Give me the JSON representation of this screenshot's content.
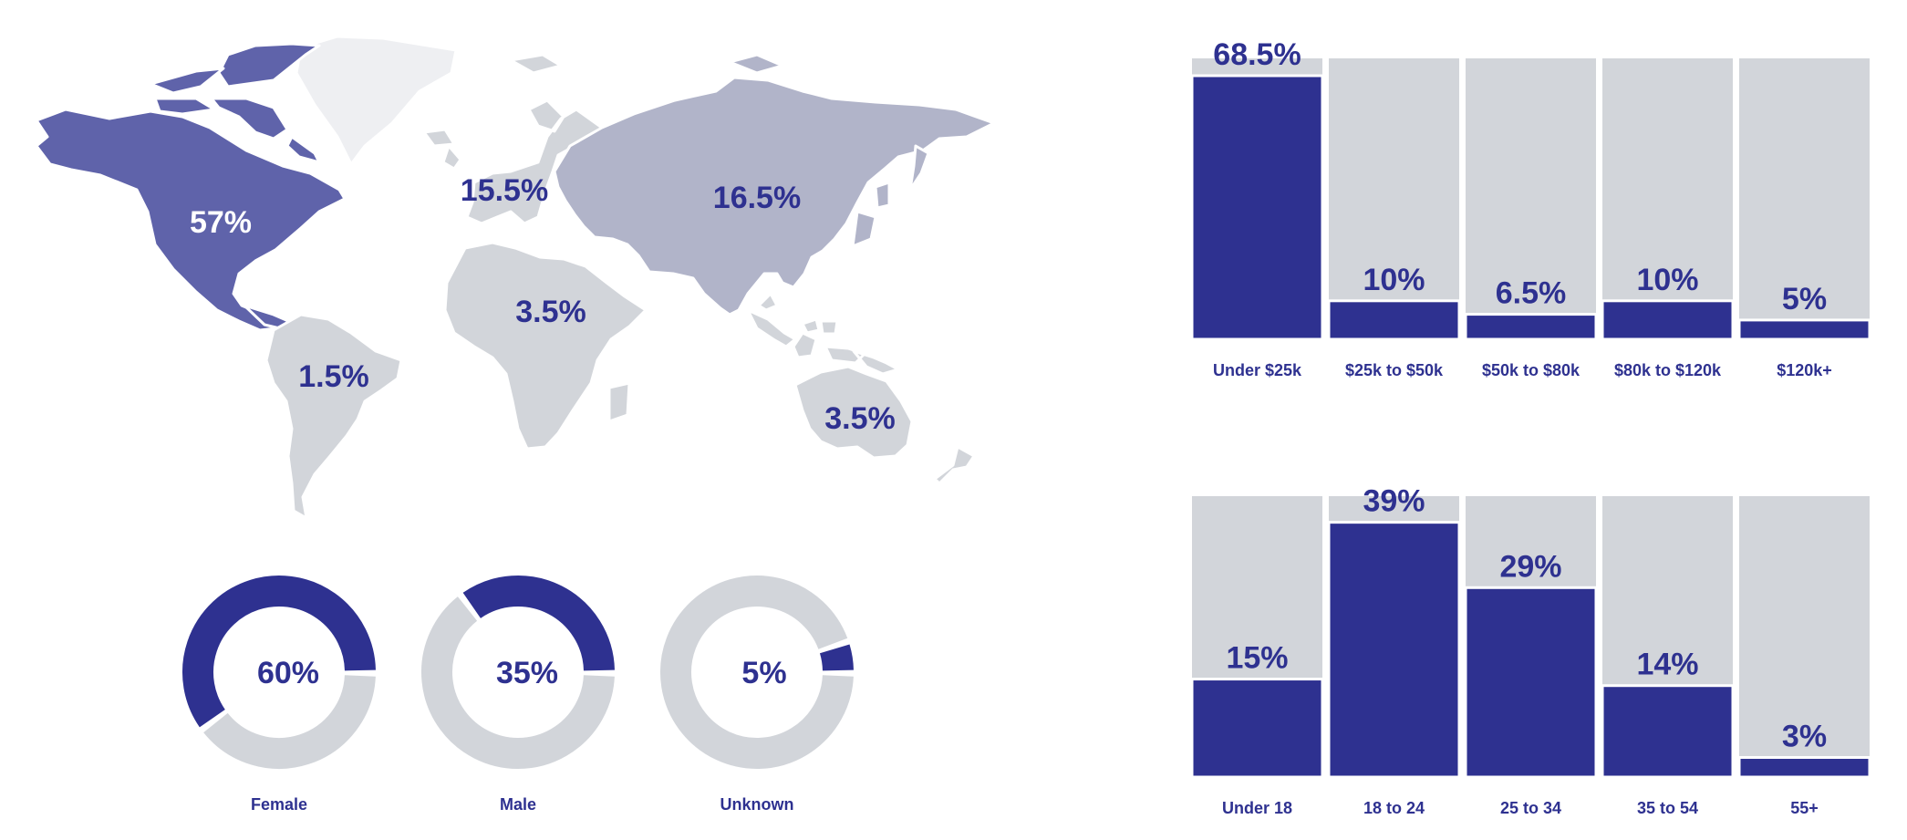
{
  "colors": {
    "accent": "#2e3190",
    "track": "#d2d5da",
    "north_america": "#5f63aa",
    "asia": "#b1b4c9",
    "land": "#d2d5da",
    "greenland": "#eeeff2",
    "label_light": "#ffffff"
  },
  "map": {
    "regions": [
      {
        "name": "North America",
        "value": "57%"
      },
      {
        "name": "Europe",
        "value": "15.5%"
      },
      {
        "name": "Asia",
        "value": "16.5%"
      },
      {
        "name": "Africa",
        "value": "3.5%"
      },
      {
        "name": "South America",
        "value": "1.5%"
      },
      {
        "name": "Oceania",
        "value": "3.5%"
      }
    ]
  },
  "chart_data": [
    {
      "type": "pie",
      "variant": "donut",
      "label": "Female",
      "value": 60,
      "display": "60%"
    },
    {
      "type": "pie",
      "variant": "donut",
      "label": "Male",
      "value": 35,
      "display": "35%"
    },
    {
      "type": "pie",
      "variant": "donut",
      "label": "Unknown",
      "value": 5,
      "display": "5%"
    },
    {
      "type": "bar",
      "categories": [
        "Under $25k",
        "$25k to $50k",
        "$50k to $80k",
        "$80k to $120k",
        "$120k+"
      ],
      "values": [
        68.5,
        10,
        6.5,
        10,
        5
      ],
      "labels": [
        "68.5%",
        "10%",
        "6.5%",
        "10%",
        "5%"
      ],
      "ylim": [
        0,
        73
      ]
    },
    {
      "type": "bar",
      "categories": [
        "Under 18",
        "18 to 24",
        "25 to 34",
        "35 to 54",
        "55+"
      ],
      "values": [
        15,
        39,
        29,
        14,
        3
      ],
      "labels": [
        "15%",
        "39%",
        "29%",
        "14%",
        "3%"
      ],
      "ylim": [
        0,
        43
      ]
    }
  ]
}
